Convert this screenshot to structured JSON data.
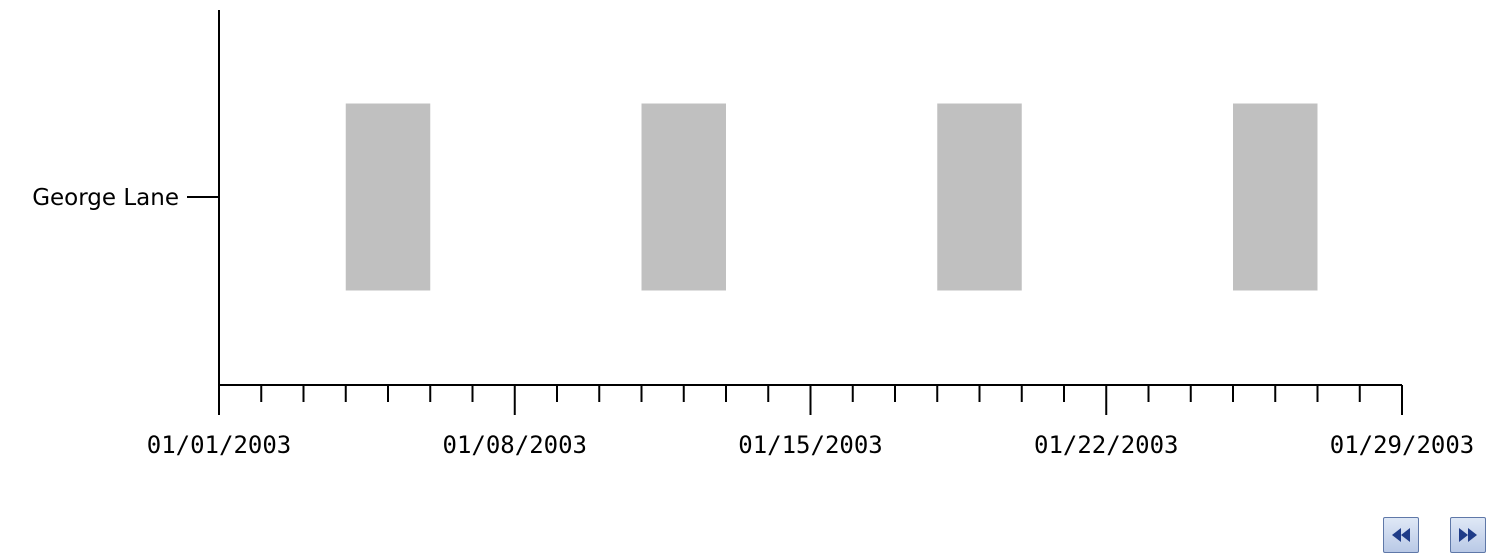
{
  "chart_data": {
    "type": "timeline",
    "xlabel": "",
    "ylabel": "",
    "categories": [
      "George Lane"
    ],
    "x_range": [
      "01/01/2003",
      "01/29/2003"
    ],
    "x_tick_labels": [
      "01/01/2003",
      "01/08/2003",
      "01/15/2003",
      "01/22/2003",
      "01/29/2003"
    ],
    "minor_tick_interval_days": 1,
    "bars": [
      {
        "category": "George Lane",
        "start": "01/04/2003",
        "end": "01/06/2003"
      },
      {
        "category": "George Lane",
        "start": "01/11/2003",
        "end": "01/13/2003"
      },
      {
        "category": "George Lane",
        "start": "01/18/2003",
        "end": "01/20/2003"
      },
      {
        "category": "George Lane",
        "start": "01/25/2003",
        "end": "01/27/2003"
      }
    ],
    "bar_color": "#c0c0c0",
    "grid": false
  },
  "navigation": {
    "prev_icon": "rewind-icon",
    "next_icon": "fast-forward-icon",
    "icon_color": "#1f3c88"
  }
}
